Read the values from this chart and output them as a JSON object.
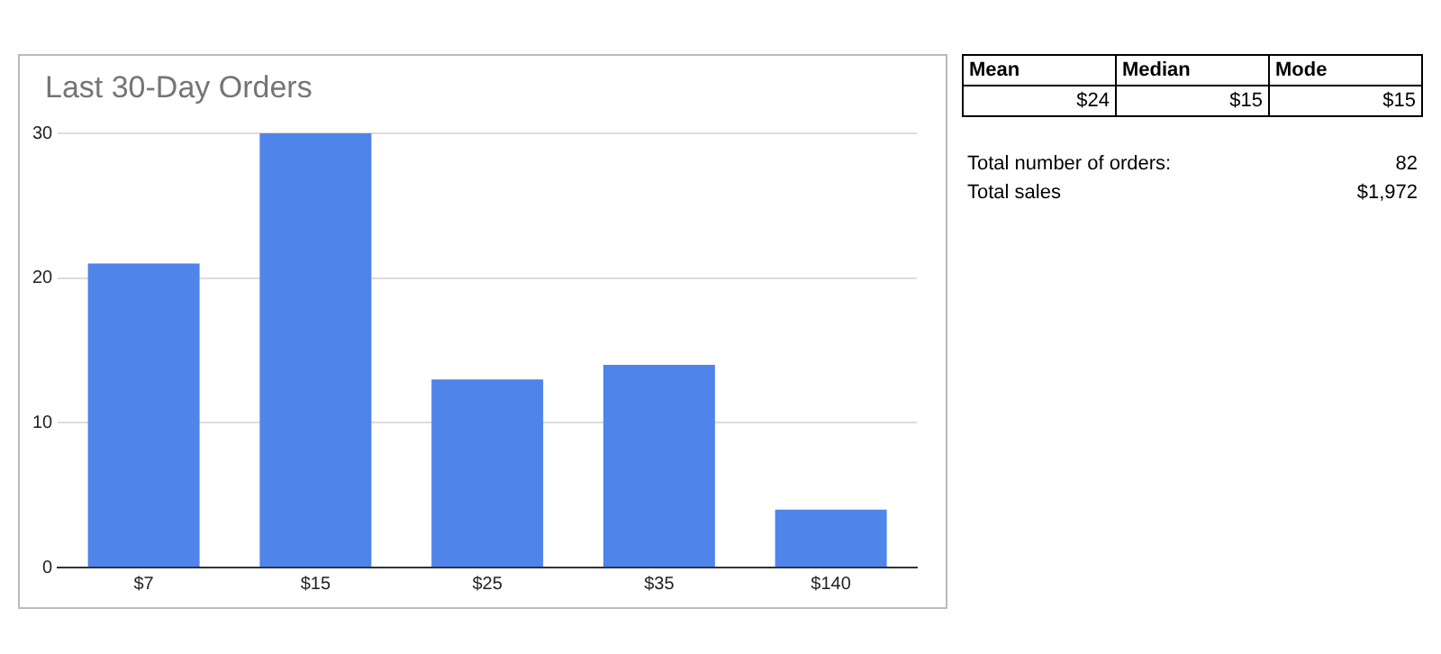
{
  "chart_data": {
    "type": "bar",
    "title": "Last 30-Day Orders",
    "categories": [
      "$7",
      "$15",
      "$25",
      "$35",
      "$140"
    ],
    "values": [
      21,
      30,
      13,
      14,
      4
    ],
    "color": "#4f84ea",
    "ylim": [
      0,
      30
    ],
    "yticks": [
      0,
      10,
      20,
      30
    ],
    "grid": "y",
    "annotations": [
      "Mean",
      "Median",
      "Mode",
      "$24",
      "$15",
      "$15",
      "Total number of orders:",
      "82",
      "Total sales",
      "$1,972"
    ]
  }
}
